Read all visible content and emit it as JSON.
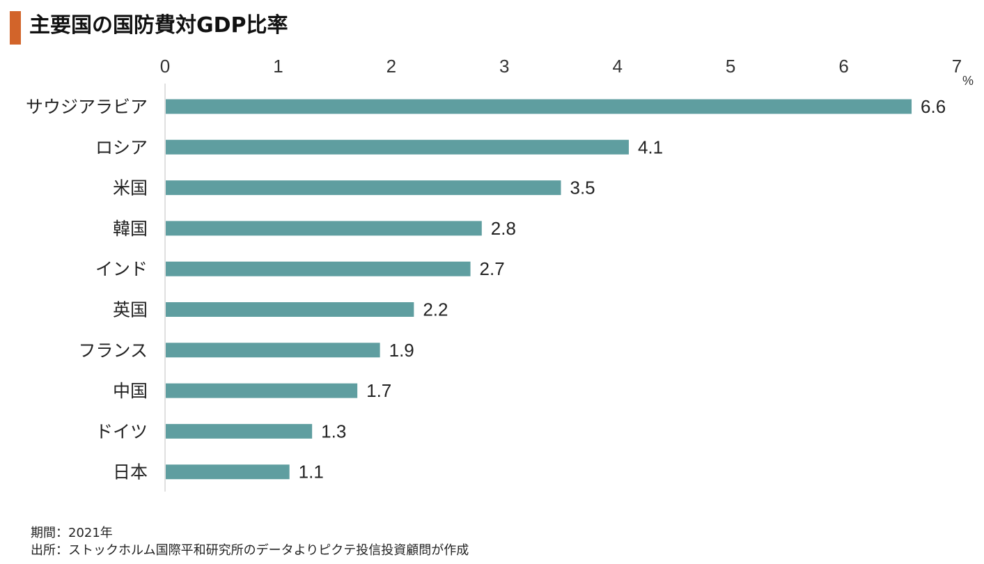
{
  "title": "主要国の国防費対GDP比率",
  "accent_color": "#d2642a",
  "bar_color": "#5f9ea0",
  "notes": {
    "period": "期間：2021年",
    "source": "出所：ストックホルム国際平和研究所のデータよりピクテ投信投資顧問が作成"
  },
  "chart_data": {
    "type": "bar",
    "orientation": "horizontal",
    "title": "主要国の国防費対GDP比率",
    "unit": "%",
    "categories": [
      "サウジアラビア",
      "ロシア",
      "米国",
      "韓国",
      "インド",
      "英国",
      "フランス",
      "中国",
      "ドイツ",
      "日本"
    ],
    "values": [
      6.6,
      4.1,
      3.5,
      2.8,
      2.7,
      2.2,
      1.9,
      1.7,
      1.3,
      1.1
    ],
    "value_labels": [
      "6.6",
      "4.1",
      "3.5",
      "2.8",
      "2.7",
      "2.2",
      "1.9",
      "1.7",
      "1.3",
      "1.1"
    ],
    "xlim": [
      0,
      7
    ],
    "ticks": [
      "0",
      "1",
      "2",
      "3",
      "4",
      "5",
      "6",
      "7"
    ],
    "grid": false,
    "axis_position": "top"
  }
}
